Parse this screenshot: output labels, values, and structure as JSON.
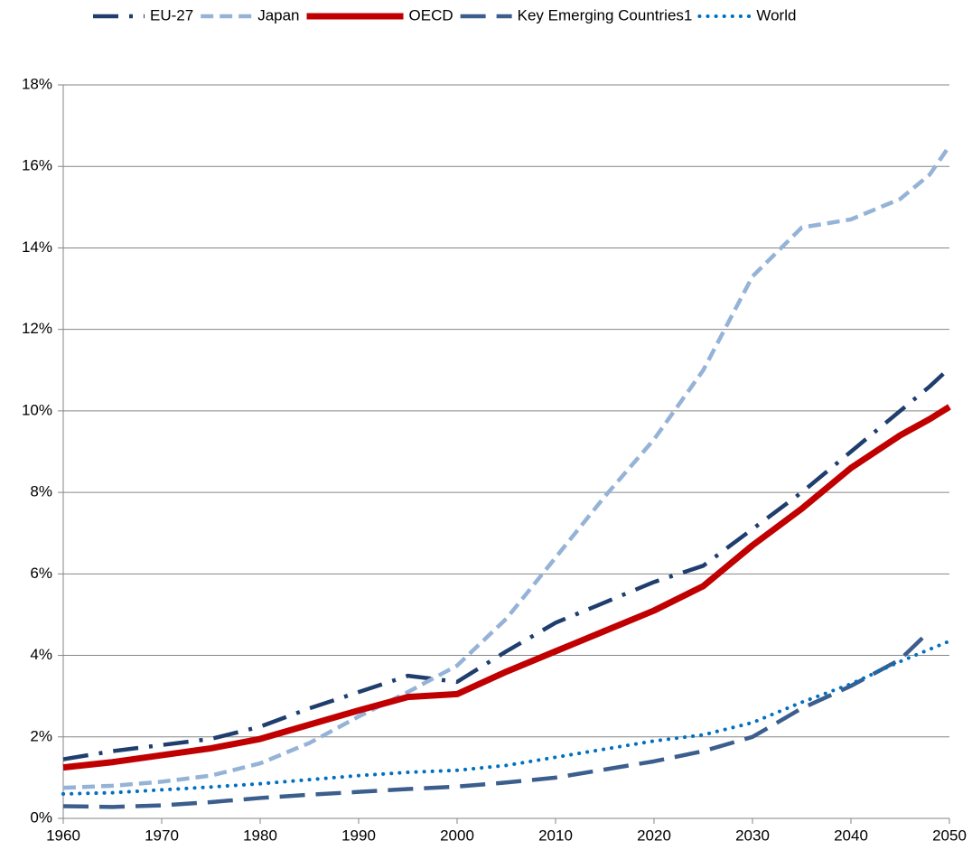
{
  "chart_data": {
    "type": "line",
    "x": [
      1960,
      1965,
      1970,
      1975,
      1980,
      1985,
      1990,
      1995,
      2000,
      2005,
      2010,
      2015,
      2020,
      2025,
      2030,
      2035,
      2040,
      2045,
      2048,
      2050
    ],
    "series": [
      {
        "name": "EU-27",
        "color": "#1f3e6e",
        "style": "dash-dot",
        "values": [
          1.45,
          1.65,
          1.8,
          1.95,
          2.25,
          2.7,
          3.1,
          3.5,
          3.35,
          4.1,
          4.8,
          5.3,
          5.8,
          6.2,
          7.1,
          8.0,
          9.0,
          10.0,
          10.6,
          11.05
        ]
      },
      {
        "name": "Japan",
        "color": "#95b3d7",
        "style": "dash",
        "values": [
          0.75,
          0.8,
          0.9,
          1.05,
          1.35,
          1.85,
          2.5,
          3.1,
          3.75,
          4.9,
          6.4,
          7.9,
          9.3,
          11.0,
          13.3,
          14.5,
          14.7,
          15.2,
          15.8,
          16.5
        ]
      },
      {
        "name": "OECD",
        "color": "#c00000",
        "style": "solid",
        "values": [
          1.25,
          1.38,
          1.55,
          1.72,
          1.95,
          2.3,
          2.65,
          2.98,
          3.05,
          3.6,
          4.1,
          4.6,
          5.1,
          5.7,
          6.7,
          7.6,
          8.6,
          9.4,
          9.8,
          10.1
        ]
      },
      {
        "name": "Key Emerging Countries1",
        "color": "#3b5e8c",
        "style": "long-dash",
        "values": [
          0.3,
          0.28,
          0.32,
          0.4,
          0.5,
          0.58,
          0.65,
          0.72,
          0.78,
          0.88,
          1.0,
          1.2,
          1.4,
          1.65,
          2.0,
          2.7,
          3.25,
          3.9,
          4.6,
          null
        ]
      },
      {
        "name": "World",
        "color": "#0070c0",
        "style": "dot",
        "values": [
          0.6,
          0.63,
          0.7,
          0.77,
          0.85,
          0.95,
          1.05,
          1.13,
          1.18,
          1.3,
          1.5,
          1.7,
          1.9,
          2.05,
          2.35,
          2.85,
          3.3,
          3.85,
          4.15,
          4.35
        ]
      }
    ],
    "xlim": [
      1960,
      2050
    ],
    "xticks": [
      1960,
      1970,
      1980,
      1990,
      2000,
      2010,
      2020,
      2030,
      2040,
      2050
    ],
    "ylim": [
      0,
      18
    ],
    "yticks": [
      {
        "value": 0,
        "label": "0%"
      },
      {
        "value": 2,
        "label": "2%"
      },
      {
        "value": 4,
        "label": "4%"
      },
      {
        "value": 6,
        "label": "6%"
      },
      {
        "value": 8,
        "label": "8%"
      },
      {
        "value": 10,
        "label": "10%"
      },
      {
        "value": 12,
        "label": "12%"
      },
      {
        "value": 14,
        "label": "14%"
      },
      {
        "value": 16,
        "label": "16%"
      },
      {
        "value": 18,
        "label": "18%"
      }
    ],
    "grid": true,
    "legend": "top"
  }
}
